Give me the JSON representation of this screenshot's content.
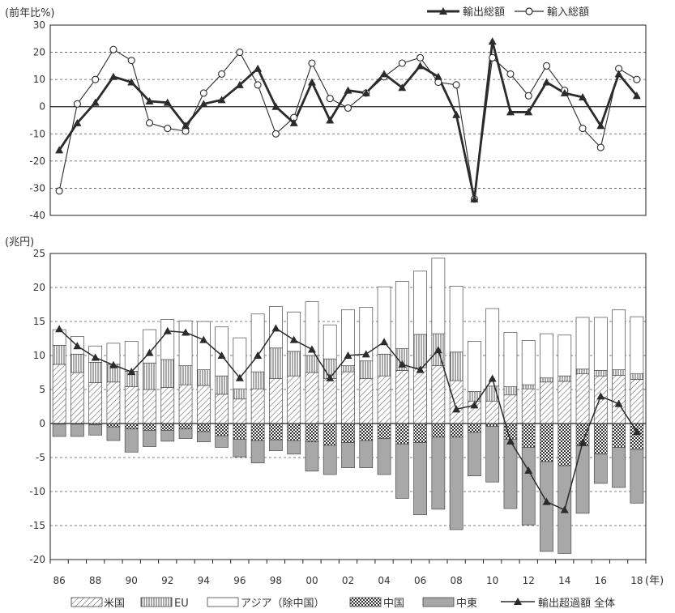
{
  "chart_data": [
    {
      "type": "line",
      "legend_position": "top-right",
      "ylabel": "(前年比%)",
      "ylim": [
        -40,
        30
      ],
      "y_ticks": [
        "30",
        "20",
        "10",
        "0",
        "-10",
        "-20",
        "-30",
        "-40"
      ],
      "grid": "dashed horizontal",
      "x": [
        1986,
        1987,
        1988,
        1989,
        1990,
        1991,
        1992,
        1993,
        1994,
        1995,
        1996,
        1997,
        1998,
        1999,
        2000,
        2001,
        2002,
        2003,
        2004,
        2005,
        2006,
        2007,
        2008,
        2009,
        2010,
        2011,
        2012,
        2013,
        2014,
        2015,
        2016,
        2017,
        2018
      ],
      "series": [
        {
          "name": "輸出総額",
          "marker": "filled-triangle",
          "values": [
            -16,
            -6,
            1.5,
            11,
            9,
            2,
            1.5,
            -7,
            1,
            2.5,
            8,
            14,
            0,
            -6,
            9,
            -5,
            6,
            5,
            12,
            7,
            15,
            11,
            -3,
            -34,
            24,
            -2,
            -2,
            9,
            5,
            3.5,
            -7,
            12,
            4
          ]
        },
        {
          "name": "輸入総額",
          "marker": "open-circle",
          "values": [
            -31,
            1,
            10,
            21,
            17,
            -6,
            -8,
            -9,
            5,
            12,
            20,
            8,
            -10,
            -4,
            16,
            3,
            -0.5,
            5,
            11,
            16,
            18,
            9,
            8,
            -34,
            18,
            12,
            4,
            15,
            6,
            -8,
            -15,
            14,
            10
          ]
        }
      ]
    },
    {
      "type": "bar",
      "stacked": true,
      "legend_position": "bottom",
      "ylabel": "(兆円)",
      "xlabel": "(年)",
      "ylim": [
        -20,
        25
      ],
      "y_ticks": [
        "25",
        "20",
        "15",
        "10",
        "5",
        "0",
        "-5",
        "-10",
        "-15",
        "-20"
      ],
      "x_ticks": [
        "86",
        "88",
        "90",
        "92",
        "94",
        "96",
        "98",
        "00",
        "02",
        "04",
        "06",
        "08",
        "10",
        "12",
        "14",
        "16",
        "18"
      ],
      "grid": "dashed horizontal",
      "categories": [
        1986,
        1987,
        1988,
        1989,
        1990,
        1991,
        1992,
        1993,
        1994,
        1995,
        1996,
        1997,
        1998,
        1999,
        2000,
        2001,
        2002,
        2003,
        2004,
        2005,
        2006,
        2007,
        2008,
        2009,
        2010,
        2011,
        2012,
        2013,
        2014,
        2015,
        2016,
        2017,
        2018
      ],
      "series": [
        {
          "name": "米国",
          "pattern": "diagonal-hatch",
          "values": [
            8.7,
            7.5,
            6.0,
            6.1,
            5.4,
            5.0,
            5.3,
            5.7,
            5.6,
            4.3,
            3.6,
            5.1,
            6.6,
            7.0,
            7.5,
            6.6,
            7.6,
            6.6,
            7.0,
            7.8,
            8.2,
            8.5,
            6.3,
            3.3,
            3.3,
            4.2,
            5.1,
            6.1,
            6.2,
            7.3,
            7.0,
            7.1,
            6.5
          ]
        },
        {
          "name": "EU",
          "pattern": "vertical-stripe",
          "values": [
            2.8,
            2.7,
            3.0,
            2.6,
            2.3,
            3.9,
            4.1,
            2.8,
            2.3,
            2.7,
            1.5,
            2.5,
            4.5,
            3.6,
            2.5,
            2.9,
            0.9,
            2.6,
            3.2,
            3.2,
            4.9,
            4.7,
            4.2,
            1.4,
            2.2,
            1.2,
            0.6,
            0.6,
            0.8,
            0.7,
            0.8,
            0.8,
            0.8
          ]
        },
        {
          "name": "アジア（除中国）",
          "pattern": "white",
          "values": [
            2.3,
            2.6,
            2.4,
            3.1,
            4.4,
            4.9,
            5.9,
            6.6,
            7.1,
            7.2,
            7.5,
            8.5,
            6.1,
            5.8,
            7.9,
            5.0,
            8.2,
            7.9,
            9.9,
            9.9,
            9.3,
            11.1,
            9.7,
            7.4,
            11.4,
            8.0,
            6.5,
            6.5,
            6.0,
            7.6,
            7.8,
            8.8,
            8.4
          ]
        },
        {
          "name": "中国",
          "pattern": "dotted",
          "values": [
            -0.1,
            -0.1,
            -0.2,
            -0.5,
            -0.8,
            -1.0,
            -1.0,
            -0.8,
            -1.2,
            -1.8,
            -2.3,
            -2.5,
            -2.4,
            -2.5,
            -2.7,
            -3.2,
            -2.8,
            -2.5,
            -2.2,
            -3.0,
            -2.8,
            -2.0,
            -2.0,
            -1.3,
            -0.4,
            -2.3,
            -3.5,
            -5.6,
            -6.2,
            -3.3,
            -4.5,
            -3.5,
            -3.8
          ]
        },
        {
          "name": "中東",
          "pattern": "gray",
          "values": [
            -1.8,
            -1.8,
            -1.5,
            -2.0,
            -3.4,
            -2.4,
            -1.6,
            -1.4,
            -1.5,
            -1.7,
            -2.6,
            -3.3,
            -1.6,
            -2.0,
            -4.3,
            -4.3,
            -3.7,
            -4.0,
            -5.3,
            -8.0,
            -10.6,
            -10.6,
            -13.6,
            -6.4,
            -8.2,
            -10.2,
            -11.4,
            -13.2,
            -12.9,
            -9.9,
            -4.3,
            -5.9,
            -7.9
          ]
        },
        {
          "name": "輸出超過額 全体",
          "type": "line",
          "marker": "filled-triangle",
          "values": [
            13.9,
            11.4,
            9.7,
            8.6,
            7.6,
            10.4,
            13.6,
            13.4,
            12.3,
            10.0,
            6.7,
            10.0,
            14.0,
            12.3,
            10.9,
            6.7,
            10.0,
            10.2,
            12.0,
            8.7,
            7.9,
            10.8,
            2.1,
            2.7,
            6.6,
            -2.6,
            -6.9,
            -11.5,
            -12.7,
            -2.8,
            4.0,
            2.9,
            -1.2
          ]
        }
      ]
    }
  ],
  "legend": {
    "top": [
      "輸出総額",
      "輸入総額"
    ],
    "bottom": [
      "米国",
      "EU",
      "アジア（除中国）",
      "中国",
      "中東",
      "輸出超過額 全体"
    ]
  },
  "colors": {
    "line": "#2b2b2b",
    "grid": "#555555",
    "gray_bar": "#a8a8a8",
    "bar_outline": "#4a4a4a",
    "text": "#333333"
  }
}
